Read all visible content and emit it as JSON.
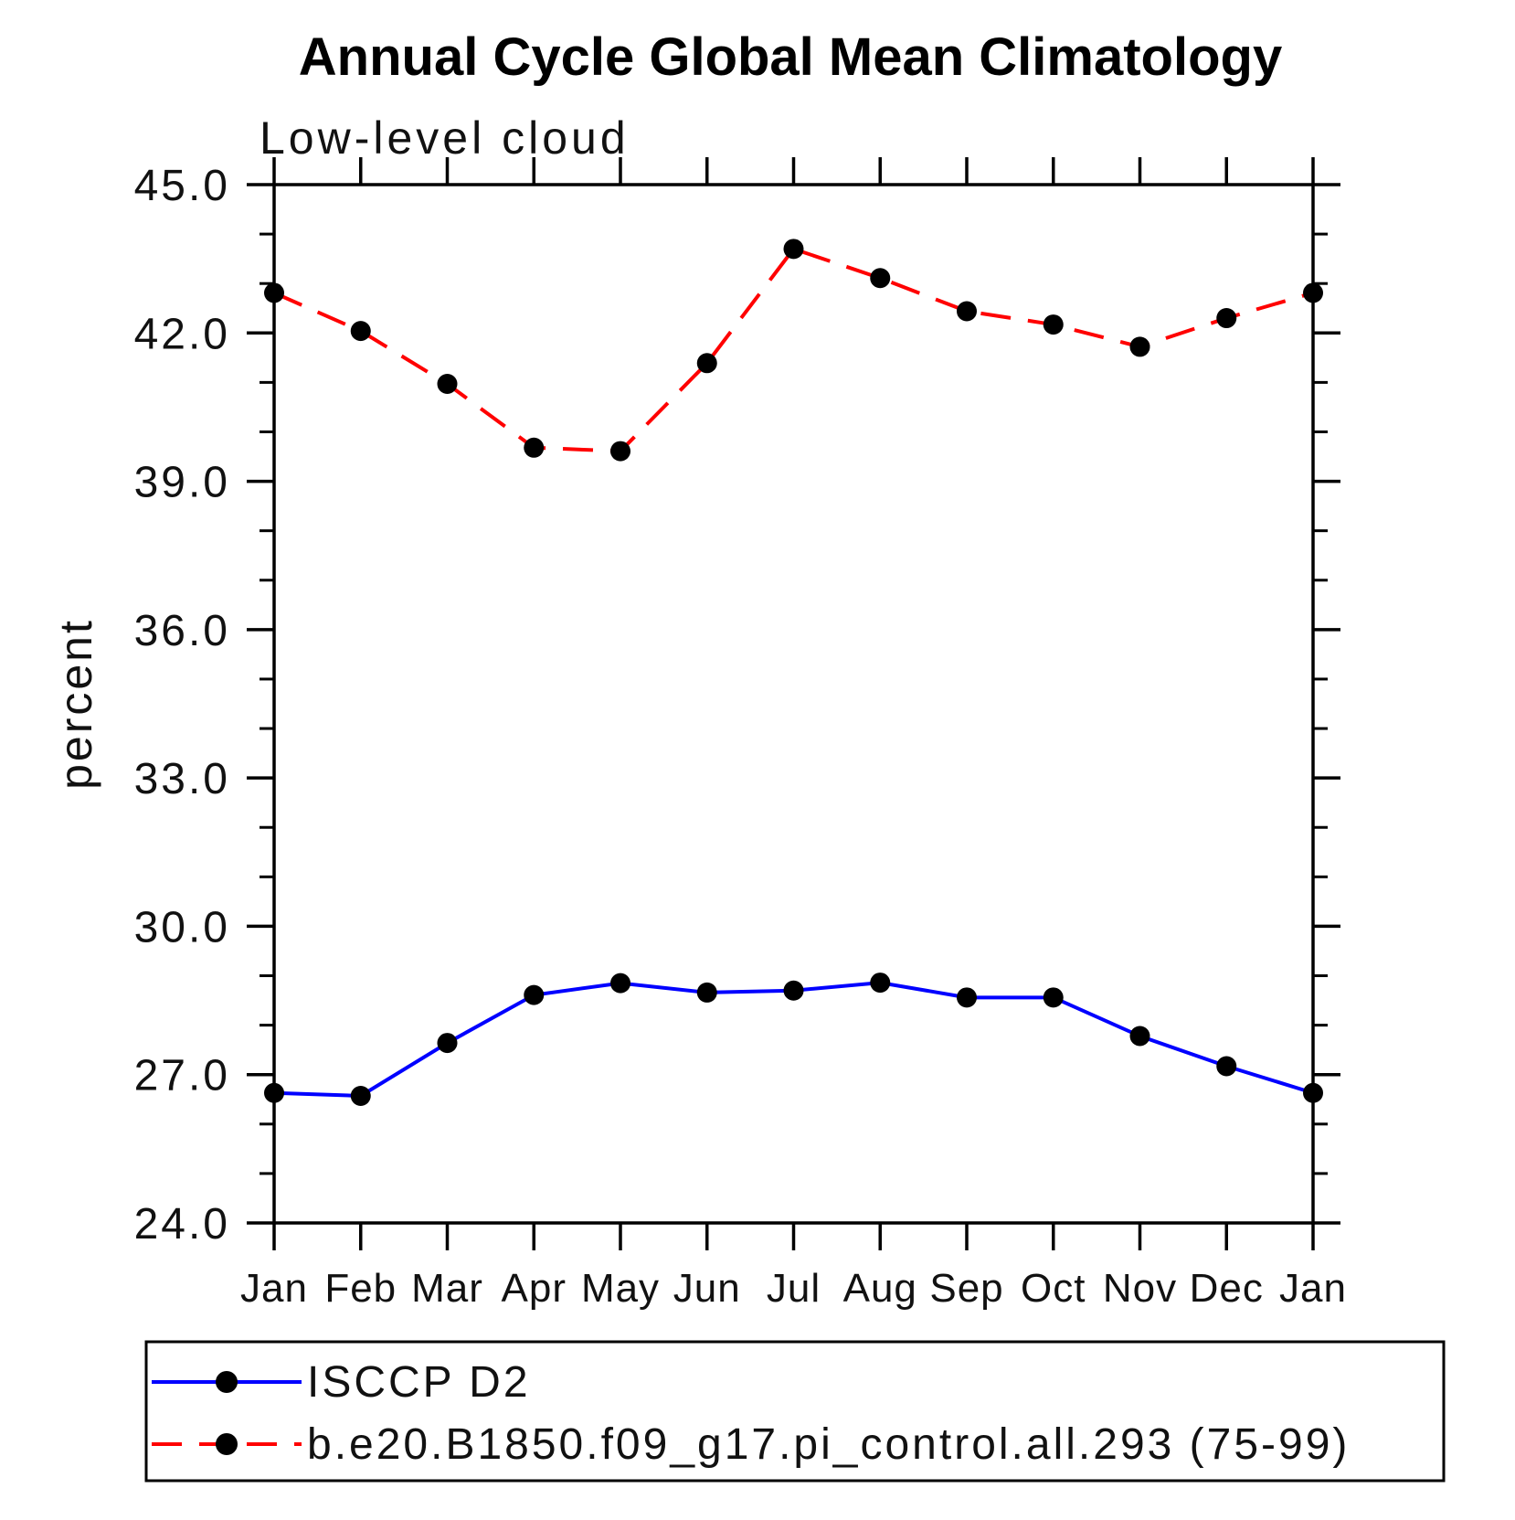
{
  "page": {
    "background_color": "#ffffff",
    "axis_color": "#000000"
  },
  "chart_data": {
    "type": "line",
    "title": "Annual Cycle Global Mean Climatology",
    "subtitle": "Low-level cloud",
    "xlabel": "",
    "ylabel": "percent",
    "x_categories": [
      "Jan",
      "Feb",
      "Mar",
      "Apr",
      "May",
      "Jun",
      "Jul",
      "Aug",
      "Sep",
      "Oct",
      "Nov",
      "Dec",
      "Jan"
    ],
    "ylim": [
      24.0,
      45.0
    ],
    "y_major_ticks": [
      24.0,
      27.0,
      30.0,
      33.0,
      36.0,
      39.0,
      42.0,
      45.0
    ],
    "y_tick_labels": [
      "24.0",
      "27.0",
      "30.0",
      "33.0",
      "36.0",
      "39.0",
      "42.0",
      "45.0"
    ],
    "y_minor_tick_step": 1.0,
    "grid": "off",
    "frame": "box with outward ticks on all four sides",
    "legend_position": "boxed legend below plot, left aligned",
    "series": [
      {
        "name": "ISCCP D2",
        "color": "#0000ff",
        "line_style": "solid",
        "marker": "filled-circle",
        "marker_color": "#000000",
        "values": [
          26.63,
          26.57,
          27.64,
          28.61,
          28.85,
          28.66,
          28.7,
          28.86,
          28.56,
          28.56,
          27.78,
          27.17,
          26.63
        ]
      },
      {
        "name": "b.e20.B1850.f09_g17.pi_control.all.293 (75-99)",
        "color": "#ff0000",
        "line_style": "dashed",
        "marker": "filled-circle",
        "marker_color": "#000000",
        "values": [
          42.81,
          42.04,
          40.97,
          39.68,
          39.61,
          41.39,
          43.7,
          43.11,
          42.44,
          42.17,
          41.72,
          42.3,
          42.81
        ]
      }
    ]
  }
}
